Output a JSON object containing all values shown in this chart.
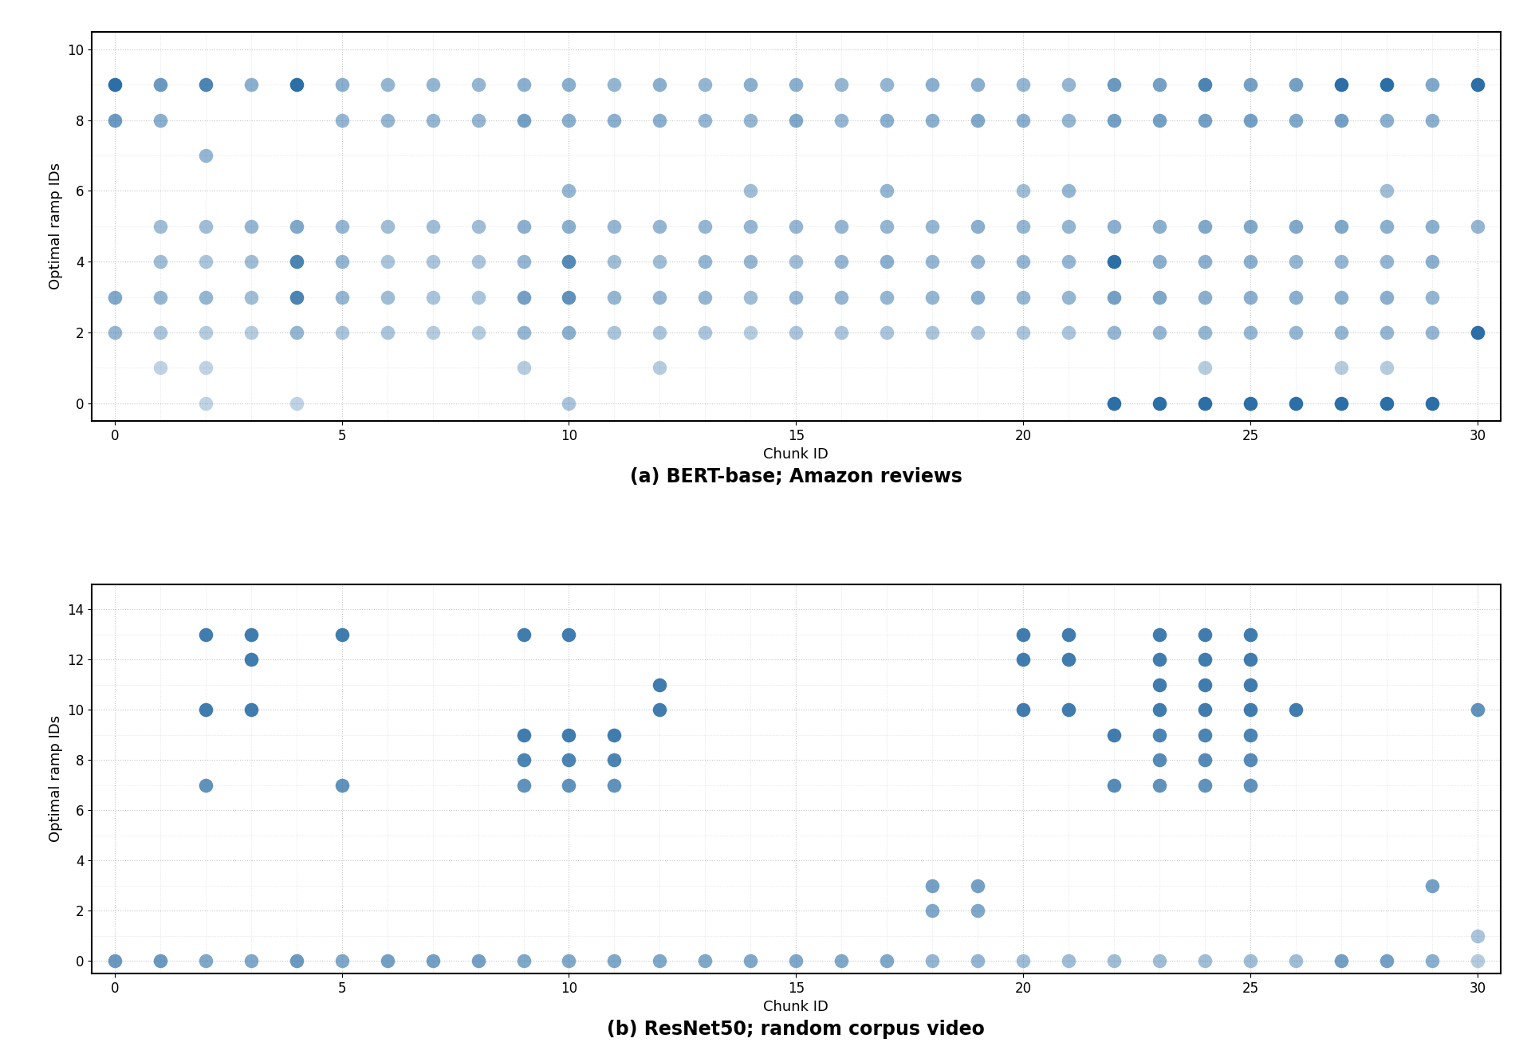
{
  "plot_a": {
    "title": "(a) BERT-base; Amazon reviews",
    "ylabel": "Optimal ramp IDs",
    "xlabel": "Chunk ID",
    "xlim": [
      -0.5,
      30.5
    ],
    "ylim": [
      -0.5,
      10.5
    ],
    "yticks": [
      0,
      2,
      4,
      6,
      8,
      10
    ],
    "xticks": [
      0,
      5,
      10,
      15,
      20,
      25,
      30
    ],
    "points": [
      [
        0,
        9,
        1.0
      ],
      [
        0,
        8,
        0.7
      ],
      [
        0,
        3,
        0.6
      ],
      [
        0,
        2,
        0.5
      ],
      [
        1,
        9,
        0.7
      ],
      [
        1,
        8,
        0.55
      ],
      [
        1,
        5,
        0.45
      ],
      [
        1,
        4,
        0.45
      ],
      [
        1,
        3,
        0.5
      ],
      [
        1,
        2,
        0.4
      ],
      [
        1,
        1,
        0.3
      ],
      [
        2,
        9,
        0.85
      ],
      [
        2,
        7,
        0.5
      ],
      [
        2,
        5,
        0.45
      ],
      [
        2,
        4,
        0.4
      ],
      [
        2,
        3,
        0.5
      ],
      [
        2,
        2,
        0.35
      ],
      [
        2,
        1,
        0.3
      ],
      [
        2,
        0,
        0.3
      ],
      [
        3,
        9,
        0.55
      ],
      [
        3,
        5,
        0.5
      ],
      [
        3,
        4,
        0.45
      ],
      [
        3,
        3,
        0.45
      ],
      [
        3,
        2,
        0.35
      ],
      [
        4,
        9,
        1.0
      ],
      [
        4,
        5,
        0.6
      ],
      [
        4,
        4,
        0.85
      ],
      [
        4,
        3,
        0.85
      ],
      [
        4,
        2,
        0.5
      ],
      [
        4,
        0,
        0.3
      ],
      [
        5,
        9,
        0.55
      ],
      [
        5,
        8,
        0.5
      ],
      [
        5,
        5,
        0.5
      ],
      [
        5,
        4,
        0.5
      ],
      [
        5,
        3,
        0.5
      ],
      [
        5,
        2,
        0.4
      ],
      [
        6,
        9,
        0.5
      ],
      [
        6,
        8,
        0.5
      ],
      [
        6,
        5,
        0.45
      ],
      [
        6,
        4,
        0.4
      ],
      [
        6,
        3,
        0.45
      ],
      [
        6,
        2,
        0.4
      ],
      [
        7,
        9,
        0.5
      ],
      [
        7,
        8,
        0.5
      ],
      [
        7,
        5,
        0.45
      ],
      [
        7,
        4,
        0.4
      ],
      [
        7,
        3,
        0.4
      ],
      [
        7,
        2,
        0.35
      ],
      [
        8,
        9,
        0.5
      ],
      [
        8,
        8,
        0.5
      ],
      [
        8,
        5,
        0.45
      ],
      [
        8,
        4,
        0.4
      ],
      [
        8,
        3,
        0.4
      ],
      [
        8,
        2,
        0.35
      ],
      [
        9,
        9,
        0.55
      ],
      [
        9,
        8,
        0.65
      ],
      [
        9,
        5,
        0.55
      ],
      [
        9,
        4,
        0.5
      ],
      [
        9,
        3,
        0.65
      ],
      [
        9,
        2,
        0.5
      ],
      [
        9,
        1,
        0.35
      ],
      [
        10,
        9,
        0.55
      ],
      [
        10,
        8,
        0.55
      ],
      [
        10,
        6,
        0.5
      ],
      [
        10,
        5,
        0.55
      ],
      [
        10,
        4,
        0.8
      ],
      [
        10,
        3,
        0.75
      ],
      [
        10,
        2,
        0.55
      ],
      [
        10,
        0,
        0.4
      ],
      [
        11,
        9,
        0.5
      ],
      [
        11,
        8,
        0.55
      ],
      [
        11,
        5,
        0.5
      ],
      [
        11,
        4,
        0.45
      ],
      [
        11,
        3,
        0.5
      ],
      [
        11,
        2,
        0.4
      ],
      [
        12,
        9,
        0.55
      ],
      [
        12,
        8,
        0.55
      ],
      [
        12,
        5,
        0.5
      ],
      [
        12,
        4,
        0.45
      ],
      [
        12,
        3,
        0.5
      ],
      [
        12,
        2,
        0.4
      ],
      [
        12,
        1,
        0.35
      ],
      [
        13,
        9,
        0.5
      ],
      [
        13,
        8,
        0.5
      ],
      [
        13,
        5,
        0.5
      ],
      [
        13,
        4,
        0.5
      ],
      [
        13,
        3,
        0.5
      ],
      [
        13,
        2,
        0.4
      ],
      [
        14,
        9,
        0.55
      ],
      [
        14,
        8,
        0.5
      ],
      [
        14,
        6,
        0.45
      ],
      [
        14,
        5,
        0.5
      ],
      [
        14,
        4,
        0.5
      ],
      [
        14,
        3,
        0.45
      ],
      [
        14,
        2,
        0.35
      ],
      [
        15,
        9,
        0.55
      ],
      [
        15,
        8,
        0.6
      ],
      [
        15,
        5,
        0.5
      ],
      [
        15,
        4,
        0.45
      ],
      [
        15,
        3,
        0.5
      ],
      [
        15,
        2,
        0.4
      ],
      [
        16,
        9,
        0.5
      ],
      [
        16,
        8,
        0.5
      ],
      [
        16,
        5,
        0.5
      ],
      [
        16,
        4,
        0.5
      ],
      [
        16,
        3,
        0.5
      ],
      [
        16,
        2,
        0.4
      ],
      [
        17,
        9,
        0.5
      ],
      [
        17,
        8,
        0.55
      ],
      [
        17,
        6,
        0.5
      ],
      [
        17,
        5,
        0.5
      ],
      [
        17,
        4,
        0.55
      ],
      [
        17,
        3,
        0.5
      ],
      [
        17,
        2,
        0.4
      ],
      [
        18,
        9,
        0.55
      ],
      [
        18,
        8,
        0.55
      ],
      [
        18,
        5,
        0.5
      ],
      [
        18,
        4,
        0.5
      ],
      [
        18,
        3,
        0.5
      ],
      [
        18,
        2,
        0.4
      ],
      [
        19,
        9,
        0.55
      ],
      [
        19,
        8,
        0.6
      ],
      [
        19,
        5,
        0.55
      ],
      [
        19,
        4,
        0.5
      ],
      [
        19,
        3,
        0.55
      ],
      [
        19,
        2,
        0.4
      ],
      [
        20,
        9,
        0.5
      ],
      [
        20,
        8,
        0.55
      ],
      [
        20,
        6,
        0.45
      ],
      [
        20,
        5,
        0.5
      ],
      [
        20,
        4,
        0.5
      ],
      [
        20,
        3,
        0.5
      ],
      [
        20,
        2,
        0.4
      ],
      [
        21,
        9,
        0.5
      ],
      [
        21,
        8,
        0.5
      ],
      [
        21,
        6,
        0.5
      ],
      [
        21,
        5,
        0.5
      ],
      [
        21,
        4,
        0.5
      ],
      [
        21,
        3,
        0.5
      ],
      [
        21,
        2,
        0.4
      ],
      [
        22,
        9,
        0.7
      ],
      [
        22,
        8,
        0.65
      ],
      [
        22,
        5,
        0.55
      ],
      [
        22,
        4,
        1.0
      ],
      [
        22,
        3,
        0.65
      ],
      [
        22,
        2,
        0.5
      ],
      [
        22,
        0,
        1.0
      ],
      [
        23,
        9,
        0.65
      ],
      [
        23,
        8,
        0.65
      ],
      [
        23,
        5,
        0.55
      ],
      [
        23,
        4,
        0.55
      ],
      [
        23,
        3,
        0.6
      ],
      [
        23,
        2,
        0.5
      ],
      [
        23,
        0,
        1.0
      ],
      [
        24,
        9,
        0.85
      ],
      [
        24,
        8,
        0.65
      ],
      [
        24,
        5,
        0.6
      ],
      [
        24,
        4,
        0.55
      ],
      [
        24,
        3,
        0.55
      ],
      [
        24,
        2,
        0.5
      ],
      [
        24,
        1,
        0.35
      ],
      [
        24,
        0,
        1.0
      ],
      [
        25,
        9,
        0.65
      ],
      [
        25,
        8,
        0.65
      ],
      [
        25,
        5,
        0.6
      ],
      [
        25,
        4,
        0.55
      ],
      [
        25,
        3,
        0.55
      ],
      [
        25,
        2,
        0.5
      ],
      [
        25,
        0,
        1.0
      ],
      [
        26,
        9,
        0.65
      ],
      [
        26,
        8,
        0.6
      ],
      [
        26,
        5,
        0.6
      ],
      [
        26,
        4,
        0.5
      ],
      [
        26,
        3,
        0.55
      ],
      [
        26,
        2,
        0.5
      ],
      [
        26,
        0,
        1.0
      ],
      [
        27,
        9,
        1.0
      ],
      [
        27,
        8,
        0.65
      ],
      [
        27,
        5,
        0.6
      ],
      [
        27,
        4,
        0.5
      ],
      [
        27,
        3,
        0.55
      ],
      [
        27,
        2,
        0.5
      ],
      [
        27,
        1,
        0.35
      ],
      [
        27,
        0,
        1.0
      ],
      [
        28,
        9,
        1.0
      ],
      [
        28,
        8,
        0.55
      ],
      [
        28,
        6,
        0.45
      ],
      [
        28,
        5,
        0.55
      ],
      [
        28,
        4,
        0.5
      ],
      [
        28,
        3,
        0.55
      ],
      [
        28,
        2,
        0.5
      ],
      [
        28,
        1,
        0.35
      ],
      [
        28,
        0,
        1.0
      ],
      [
        29,
        9,
        0.6
      ],
      [
        29,
        8,
        0.55
      ],
      [
        29,
        5,
        0.55
      ],
      [
        29,
        4,
        0.55
      ],
      [
        29,
        3,
        0.5
      ],
      [
        29,
        2,
        0.5
      ],
      [
        29,
        0,
        1.0
      ],
      [
        30,
        9,
        1.0
      ],
      [
        30,
        5,
        0.5
      ],
      [
        30,
        2,
        1.0
      ]
    ]
  },
  "plot_b": {
    "title": "(b) ResNet50; random corpus video",
    "ylabel": "Optimal ramp IDs",
    "xlabel": "Chunk ID",
    "xlim": [
      -0.5,
      30.5
    ],
    "ylim": [
      -0.5,
      15.0
    ],
    "yticks": [
      0,
      2,
      4,
      6,
      8,
      10,
      12,
      14
    ],
    "xticks": [
      0,
      5,
      10,
      15,
      20,
      25,
      30
    ],
    "points": [
      [
        0,
        0,
        0.7
      ],
      [
        1,
        0,
        0.7
      ],
      [
        2,
        13,
        0.9
      ],
      [
        2,
        10,
        0.9
      ],
      [
        2,
        7,
        0.75
      ],
      [
        2,
        0,
        0.6
      ],
      [
        3,
        13,
        0.9
      ],
      [
        3,
        12,
        0.9
      ],
      [
        3,
        10,
        0.9
      ],
      [
        3,
        0,
        0.6
      ],
      [
        4,
        0,
        0.7
      ],
      [
        5,
        13,
        0.9
      ],
      [
        5,
        7,
        0.75
      ],
      [
        5,
        0,
        0.6
      ],
      [
        6,
        0,
        0.65
      ],
      [
        7,
        0,
        0.65
      ],
      [
        8,
        0,
        0.65
      ],
      [
        9,
        13,
        0.9
      ],
      [
        9,
        9,
        0.9
      ],
      [
        9,
        8,
        0.85
      ],
      [
        9,
        7,
        0.75
      ],
      [
        9,
        0,
        0.6
      ],
      [
        10,
        13,
        0.9
      ],
      [
        10,
        9,
        0.9
      ],
      [
        10,
        8,
        0.85
      ],
      [
        10,
        7,
        0.75
      ],
      [
        10,
        0,
        0.6
      ],
      [
        11,
        9,
        0.9
      ],
      [
        11,
        8,
        0.85
      ],
      [
        11,
        7,
        0.75
      ],
      [
        11,
        0,
        0.6
      ],
      [
        12,
        11,
        0.9
      ],
      [
        12,
        10,
        0.9
      ],
      [
        12,
        0,
        0.6
      ],
      [
        13,
        0,
        0.6
      ],
      [
        14,
        0,
        0.6
      ],
      [
        15,
        0,
        0.6
      ],
      [
        16,
        0,
        0.6
      ],
      [
        17,
        0,
        0.6
      ],
      [
        18,
        3,
        0.65
      ],
      [
        18,
        2,
        0.6
      ],
      [
        18,
        0,
        0.5
      ],
      [
        19,
        3,
        0.65
      ],
      [
        19,
        2,
        0.6
      ],
      [
        19,
        0,
        0.5
      ],
      [
        20,
        13,
        0.9
      ],
      [
        20,
        12,
        0.9
      ],
      [
        20,
        10,
        0.9
      ],
      [
        20,
        0,
        0.45
      ],
      [
        21,
        13,
        0.9
      ],
      [
        21,
        12,
        0.9
      ],
      [
        21,
        10,
        0.9
      ],
      [
        21,
        0,
        0.45
      ],
      [
        22,
        9,
        0.9
      ],
      [
        22,
        7,
        0.8
      ],
      [
        22,
        0,
        0.45
      ],
      [
        23,
        13,
        0.9
      ],
      [
        23,
        12,
        0.9
      ],
      [
        23,
        11,
        0.9
      ],
      [
        23,
        10,
        0.9
      ],
      [
        23,
        9,
        0.85
      ],
      [
        23,
        8,
        0.8
      ],
      [
        23,
        7,
        0.75
      ],
      [
        23,
        0,
        0.45
      ],
      [
        24,
        13,
        0.9
      ],
      [
        24,
        12,
        0.9
      ],
      [
        24,
        11,
        0.9
      ],
      [
        24,
        10,
        0.9
      ],
      [
        24,
        9,
        0.85
      ],
      [
        24,
        8,
        0.8
      ],
      [
        24,
        7,
        0.75
      ],
      [
        24,
        0,
        0.45
      ],
      [
        25,
        13,
        0.9
      ],
      [
        25,
        12,
        0.9
      ],
      [
        25,
        11,
        0.9
      ],
      [
        25,
        10,
        0.9
      ],
      [
        25,
        9,
        0.85
      ],
      [
        25,
        8,
        0.8
      ],
      [
        25,
        7,
        0.75
      ],
      [
        25,
        0,
        0.45
      ],
      [
        26,
        10,
        0.9
      ],
      [
        26,
        0,
        0.45
      ],
      [
        27,
        0,
        0.65
      ],
      [
        28,
        0,
        0.65
      ],
      [
        29,
        3,
        0.65
      ],
      [
        29,
        0,
        0.55
      ],
      [
        30,
        10,
        0.75
      ],
      [
        30,
        1,
        0.4
      ],
      [
        30,
        0,
        0.35
      ]
    ]
  },
  "dot_color": "#2c6ea6",
  "dot_size": 160,
  "grid_color": "#c0c0c0",
  "bg_color": "#ffffff",
  "title_fontsize": 17,
  "label_fontsize": 13,
  "tick_fontsize": 12
}
